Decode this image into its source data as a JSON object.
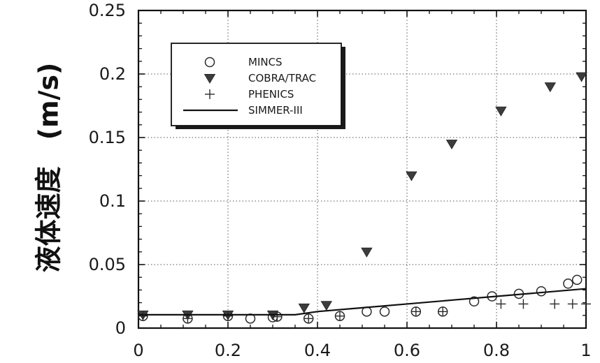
{
  "chart_data": {
    "type": "scatter",
    "title": "",
    "xlabel": "",
    "ylabel": "液体速度　(m/s)",
    "xlim": [
      0,
      1
    ],
    "ylim": [
      0,
      0.25
    ],
    "grid": true,
    "legend_position": "top-left",
    "xticks": [
      "0",
      "0.2",
      "0.4",
      "0.6",
      "0.8",
      "1"
    ],
    "yticks": [
      "0",
      "0.05",
      "0.1",
      "0.15",
      "0.2",
      "0.25"
    ],
    "series": [
      {
        "name": "MINCS",
        "marker": "circle-open",
        "points": [
          [
            0.01,
            0.0095
          ],
          [
            0.11,
            0.0075
          ],
          [
            0.2,
            0.0095
          ],
          [
            0.25,
            0.0075
          ],
          [
            0.3,
            0.0085
          ],
          [
            0.31,
            0.009
          ],
          [
            0.38,
            0.0075
          ],
          [
            0.45,
            0.0095
          ],
          [
            0.51,
            0.013
          ],
          [
            0.55,
            0.013
          ],
          [
            0.62,
            0.013
          ],
          [
            0.68,
            0.013
          ],
          [
            0.75,
            0.021
          ],
          [
            0.79,
            0.025
          ],
          [
            0.85,
            0.027
          ],
          [
            0.9,
            0.029
          ],
          [
            0.96,
            0.035
          ],
          [
            0.98,
            0.038
          ]
        ]
      },
      {
        "name": "COBRA/TRAC",
        "marker": "triangle-down-filled",
        "points": [
          [
            0.01,
            0.0105
          ],
          [
            0.11,
            0.0105
          ],
          [
            0.2,
            0.0105
          ],
          [
            0.3,
            0.0105
          ],
          [
            0.37,
            0.016
          ],
          [
            0.42,
            0.018
          ],
          [
            0.51,
            0.06
          ],
          [
            0.61,
            0.12
          ],
          [
            0.7,
            0.145
          ],
          [
            0.81,
            0.171
          ],
          [
            0.92,
            0.19
          ],
          [
            0.99,
            0.198
          ]
        ]
      },
      {
        "name": "PHENICS",
        "marker": "plus",
        "points": [
          [
            0.01,
            0.0095
          ],
          [
            0.11,
            0.0075
          ],
          [
            0.2,
            0.0095
          ],
          [
            0.31,
            0.009
          ],
          [
            0.38,
            0.0075
          ],
          [
            0.45,
            0.0095
          ],
          [
            0.62,
            0.013
          ],
          [
            0.68,
            0.013
          ],
          [
            0.81,
            0.019
          ],
          [
            0.86,
            0.019
          ],
          [
            0.93,
            0.019
          ],
          [
            0.97,
            0.019
          ],
          [
            1.0,
            0.019
          ]
        ]
      },
      {
        "name": "SIMMER-III",
        "marker": "line",
        "points": [
          [
            0,
            0.0105
          ],
          [
            0.35,
            0.0105
          ],
          [
            0.4,
            0.013
          ],
          [
            0.5,
            0.016
          ],
          [
            0.6,
            0.019
          ],
          [
            0.7,
            0.022
          ],
          [
            0.8,
            0.025
          ],
          [
            0.9,
            0.028
          ],
          [
            1.0,
            0.031
          ]
        ]
      }
    ]
  },
  "colors": {
    "marker": "#2a2a2a",
    "triangle": "#3c3c3c",
    "grid": "#555555",
    "axis": "#111111"
  }
}
